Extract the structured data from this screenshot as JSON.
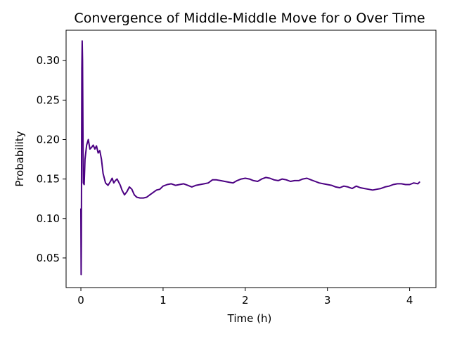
{
  "chart_data": {
    "type": "line",
    "title": "Convergence of Middle-Middle Move for o Over Time",
    "xlabel": "Time (h)",
    "ylabel": "Probability",
    "xlim": [
      -0.18,
      4.32
    ],
    "ylim": [
      0.0125,
      0.3385
    ],
    "xticks": [
      0,
      1,
      2,
      3,
      4
    ],
    "xtick_labels": [
      "0",
      "1",
      "2",
      "3",
      "4"
    ],
    "yticks": [
      0.05,
      0.1,
      0.15,
      0.2,
      0.25,
      0.3
    ],
    "ytick_labels": [
      "0.05",
      "0.10",
      "0.15",
      "0.20",
      "0.25",
      "0.30"
    ],
    "grid": false,
    "line_color": "#4b0082",
    "series": [
      {
        "x": [
          0.0,
          0.003,
          0.006,
          0.009,
          0.012,
          0.016,
          0.02,
          0.025,
          0.03,
          0.04,
          0.05,
          0.07,
          0.09,
          0.11,
          0.13,
          0.15,
          0.17,
          0.19,
          0.21,
          0.23,
          0.25,
          0.27,
          0.3,
          0.33,
          0.36,
          0.38,
          0.4,
          0.42,
          0.44,
          0.46,
          0.48,
          0.5,
          0.53,
          0.56,
          0.59,
          0.62,
          0.65,
          0.68,
          0.72,
          0.76,
          0.8,
          0.84,
          0.88,
          0.92,
          0.96,
          1.0,
          1.05,
          1.1,
          1.15,
          1.2,
          1.25,
          1.3,
          1.35,
          1.4,
          1.45,
          1.5,
          1.55,
          1.6,
          1.65,
          1.7,
          1.75,
          1.8,
          1.85,
          1.9,
          1.95,
          2.0,
          2.05,
          2.1,
          2.15,
          2.2,
          2.25,
          2.3,
          2.35,
          2.4,
          2.45,
          2.5,
          2.55,
          2.6,
          2.65,
          2.7,
          2.75,
          2.8,
          2.85,
          2.9,
          2.95,
          3.0,
          3.05,
          3.1,
          3.15,
          3.2,
          3.25,
          3.3,
          3.35,
          3.4,
          3.45,
          3.5,
          3.55,
          3.6,
          3.65,
          3.7,
          3.75,
          3.8,
          3.85,
          3.9,
          3.95,
          4.0,
          4.05,
          4.1,
          4.12
        ],
        "y": [
          0.112,
          0.029,
          0.07,
          0.2,
          0.29,
          0.325,
          0.3,
          0.21,
          0.145,
          0.143,
          0.175,
          0.193,
          0.2,
          0.188,
          0.19,
          0.193,
          0.188,
          0.192,
          0.183,
          0.186,
          0.175,
          0.157,
          0.145,
          0.142,
          0.147,
          0.151,
          0.145,
          0.148,
          0.15,
          0.146,
          0.142,
          0.136,
          0.13,
          0.134,
          0.14,
          0.137,
          0.13,
          0.127,
          0.126,
          0.126,
          0.127,
          0.13,
          0.133,
          0.136,
          0.137,
          0.141,
          0.143,
          0.144,
          0.142,
          0.143,
          0.144,
          0.142,
          0.14,
          0.142,
          0.143,
          0.144,
          0.145,
          0.149,
          0.149,
          0.148,
          0.147,
          0.146,
          0.145,
          0.148,
          0.15,
          0.151,
          0.15,
          0.148,
          0.147,
          0.15,
          0.152,
          0.151,
          0.149,
          0.148,
          0.15,
          0.149,
          0.147,
          0.148,
          0.148,
          0.15,
          0.151,
          0.149,
          0.147,
          0.145,
          0.144,
          0.143,
          0.142,
          0.14,
          0.139,
          0.141,
          0.14,
          0.138,
          0.141,
          0.139,
          0.138,
          0.137,
          0.136,
          0.137,
          0.138,
          0.14,
          0.141,
          0.143,
          0.144,
          0.144,
          0.143,
          0.143,
          0.145,
          0.144,
          0.146
        ]
      }
    ]
  }
}
